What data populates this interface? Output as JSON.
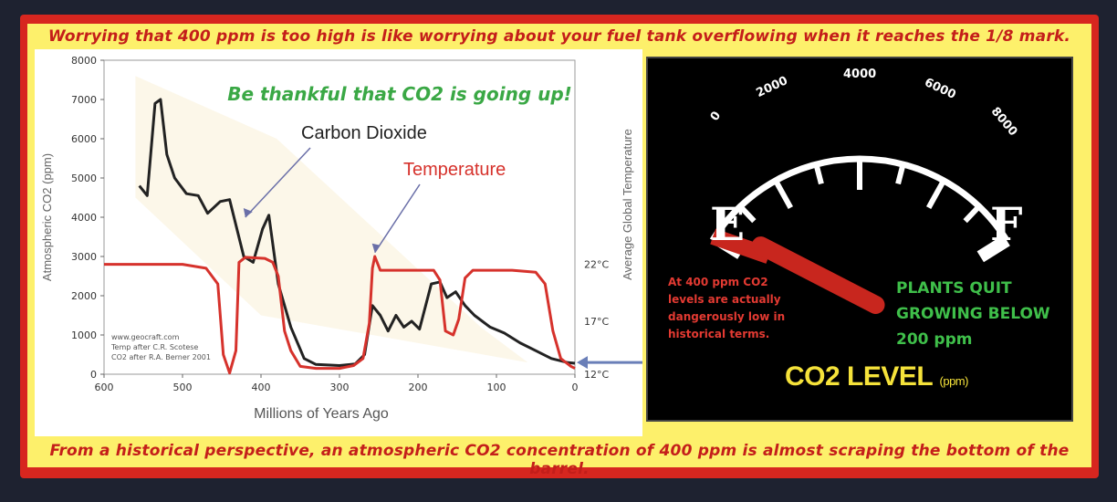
{
  "top_banner": "Worrying that 400 ppm is too high is like worrying about your fuel tank overflowing when it reaches the 1/8 mark.",
  "bottom_banner": "From a historical perspective, an atmospheric CO2 concentration of 400 ppm is almost scraping the bottom of the barrel.",
  "colors": {
    "frame": "#d7261f",
    "banner_bg": "#fdf06b",
    "co2_series": "#222222",
    "temp_series": "#d6322c",
    "headline": "#3aa845",
    "gauge_needle": "#c8261e",
    "gauge_green": "#3fbf4a",
    "gauge_yellow": "#f5e23a"
  },
  "chart_data": {
    "type": "line",
    "headline": "Be thankful that CO2 is going up!",
    "xlabel": "Millions of Years Ago",
    "ylabel": "Atmospheric CO2 (ppm)",
    "y2label": "Average Global Temperature",
    "xlim": [
      600,
      0
    ],
    "ylim": [
      0,
      8000
    ],
    "x_ticks": [
      "600",
      "500",
      "400",
      "300",
      "200",
      "100",
      "0"
    ],
    "y_ticks": [
      "0",
      "1000",
      "2000",
      "3000",
      "4000",
      "5000",
      "6000",
      "7000",
      "8000"
    ],
    "y2_ticks": [
      {
        "label": "22°C",
        "y": 2800
      },
      {
        "label": "17°C",
        "y": 1350
      },
      {
        "label": "12°C",
        "y": 0
      }
    ],
    "annotations": {
      "co2_label": "Carbon Dioxide",
      "temp_label": "Temperature"
    },
    "credits": [
      "www.geocraft.com",
      "Temp after C.R. Scotese",
      "CO2 after R.A. Berner 2001"
    ],
    "series": [
      {
        "name": "Carbon Dioxide",
        "points": [
          [
            555,
            4800
          ],
          [
            545,
            4550
          ],
          [
            535,
            6900
          ],
          [
            528,
            7000
          ],
          [
            520,
            5600
          ],
          [
            510,
            5000
          ],
          [
            495,
            4600
          ],
          [
            480,
            4550
          ],
          [
            468,
            4100
          ],
          [
            452,
            4400
          ],
          [
            440,
            4450
          ],
          [
            422,
            3000
          ],
          [
            410,
            2850
          ],
          [
            398,
            3700
          ],
          [
            390,
            4050
          ],
          [
            378,
            2300
          ],
          [
            362,
            1200
          ],
          [
            345,
            400
          ],
          [
            330,
            250
          ],
          [
            300,
            220
          ],
          [
            280,
            260
          ],
          [
            268,
            500
          ],
          [
            258,
            1750
          ],
          [
            248,
            1500
          ],
          [
            238,
            1100
          ],
          [
            228,
            1500
          ],
          [
            218,
            1200
          ],
          [
            208,
            1350
          ],
          [
            198,
            1150
          ],
          [
            183,
            2300
          ],
          [
            172,
            2350
          ],
          [
            163,
            1950
          ],
          [
            152,
            2100
          ],
          [
            140,
            1750
          ],
          [
            128,
            1500
          ],
          [
            108,
            1200
          ],
          [
            90,
            1050
          ],
          [
            70,
            800
          ],
          [
            50,
            600
          ],
          [
            30,
            400
          ],
          [
            10,
            300
          ],
          [
            0,
            280
          ]
        ]
      },
      {
        "name": "Temperature",
        "points": [
          [
            600,
            2800
          ],
          [
            500,
            2800
          ],
          [
            470,
            2700
          ],
          [
            455,
            2300
          ],
          [
            448,
            500
          ],
          [
            440,
            30
          ],
          [
            432,
            600
          ],
          [
            428,
            2850
          ],
          [
            420,
            2980
          ],
          [
            395,
            2950
          ],
          [
            385,
            2850
          ],
          [
            378,
            2500
          ],
          [
            370,
            1100
          ],
          [
            362,
            600
          ],
          [
            350,
            200
          ],
          [
            330,
            150
          ],
          [
            300,
            150
          ],
          [
            282,
            220
          ],
          [
            270,
            400
          ],
          [
            262,
            1300
          ],
          [
            258,
            2700
          ],
          [
            255,
            3000
          ],
          [
            248,
            2650
          ],
          [
            180,
            2650
          ],
          [
            172,
            2400
          ],
          [
            165,
            1100
          ],
          [
            155,
            1000
          ],
          [
            148,
            1400
          ],
          [
            140,
            2450
          ],
          [
            130,
            2650
          ],
          [
            80,
            2650
          ],
          [
            50,
            2600
          ],
          [
            38,
            2300
          ],
          [
            28,
            1100
          ],
          [
            18,
            400
          ],
          [
            5,
            200
          ],
          [
            0,
            150
          ]
        ]
      }
    ]
  },
  "gauge": {
    "scale_labels": [
      "0",
      "2000",
      "4000",
      "6000",
      "8000"
    ],
    "empty_label": "E",
    "full_label": "F",
    "warning_lines": [
      "At 400 ppm CO2",
      "levels are actually",
      "dangerously low in",
      "historical terms."
    ],
    "plants_lines": [
      "PLANTS QUIT",
      "GROWING BELOW",
      "200 ppm"
    ],
    "level_title": "CO2 LEVEL",
    "level_unit": "(ppm)",
    "needle_value": 400,
    "scale_max": 8000
  }
}
